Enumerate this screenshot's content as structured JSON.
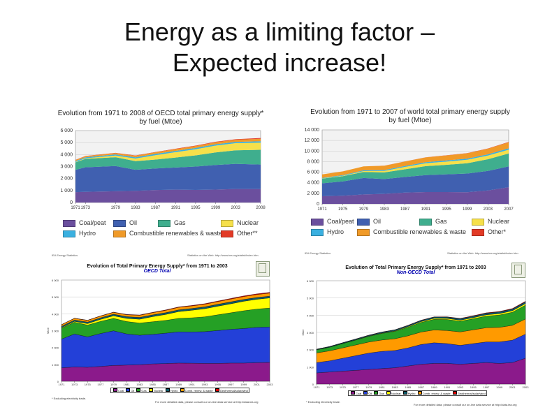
{
  "slide": {
    "title_line1": "Energy as a limiting factor –",
    "title_line2": "Expected increase!"
  },
  "colors": {
    "coal": "#6b4f9e",
    "oil": "#4060b0",
    "gas": "#3fae8e",
    "nuclear": "#f6e04a",
    "hydro": "#3ab0e0",
    "combustible": "#f09a28",
    "other": "#e23a26",
    "s_coal": "#8b1a8b",
    "s_oil": "#2340d8",
    "s_gas": "#25a025",
    "s_nuclear": "#ffff00",
    "s_hydro": "#0c5a6a",
    "s_comb": "#ff9a00",
    "s_geo": "#e00000"
  },
  "chart_data": [
    {
      "type": "area",
      "title": "Evolution from 1971 to 2008 of OECD total primary energy supply*\nby fuel (Mtoe)",
      "x": [
        1971,
        1973,
        1979,
        1983,
        1987,
        1991,
        1995,
        1999,
        2003,
        2008
      ],
      "xticks": [
        "1971",
        "1973",
        "1979",
        "1983",
        "1987",
        "1991",
        "1995",
        "1999",
        "2003",
        "2008"
      ],
      "ylim": [
        0,
        6000
      ],
      "yticks": [
        "0",
        "1 000",
        "2 000",
        "3 000",
        "4 000",
        "5 000",
        "6 000"
      ],
      "series": [
        {
          "name": "Coal/peat",
          "values": [
            870,
            890,
            940,
            980,
            1040,
            1070,
            1050,
            1080,
            1130,
            1120
          ]
        },
        {
          "name": "Oil",
          "values": [
            1850,
            2050,
            2100,
            1750,
            1800,
            1850,
            1950,
            2050,
            2100,
            2050
          ]
        },
        {
          "name": "Gas",
          "values": [
            630,
            700,
            740,
            720,
            740,
            830,
            930,
            1050,
            1120,
            1230
          ]
        },
        {
          "name": "Nuclear",
          "values": [
            30,
            50,
            140,
            220,
            370,
            450,
            510,
            570,
            600,
            600
          ]
        },
        {
          "name": "Hydro",
          "values": [
            80,
            85,
            95,
            105,
            105,
            105,
            110,
            110,
            105,
            110
          ]
        },
        {
          "name": "Combustible renewables & waste",
          "values": [
            90,
            95,
            110,
            130,
            140,
            150,
            160,
            170,
            180,
            210
          ]
        },
        {
          "name": "Other**",
          "values": [
            10,
            10,
            15,
            20,
            25,
            30,
            35,
            40,
            45,
            60
          ]
        }
      ],
      "legend": [
        "Coal/peat",
        "Oil",
        "Gas",
        "Nuclear",
        "Hydro",
        "Combustible renewables & waste",
        "Other**"
      ]
    },
    {
      "type": "area",
      "title": "Evolution from 1971 to 2007 of world total primary energy supply\nby fuel (Mtoe)",
      "x": [
        1971,
        1975,
        1979,
        1983,
        1987,
        1991,
        1995,
        1999,
        2003,
        2007
      ],
      "xticks": [
        "1971",
        "1975",
        "1979",
        "1983",
        "1987",
        "1991",
        "1995",
        "1999",
        "2003",
        "2007"
      ],
      "ylim": [
        0,
        14000
      ],
      "yticks": [
        "0",
        "2 000",
        "4 000",
        "6 000",
        "8 000",
        "10 000",
        "12 000",
        "14 000"
      ],
      "series": [
        {
          "name": "Coal/peat",
          "values": [
            1450,
            1550,
            1800,
            1900,
            2150,
            2250,
            2250,
            2200,
            2550,
            3150
          ]
        },
        {
          "name": "Oil",
          "values": [
            2450,
            2700,
            3100,
            2800,
            2950,
            3200,
            3350,
            3550,
            3700,
            3950
          ]
        },
        {
          "name": "Gas",
          "values": [
            900,
            1000,
            1150,
            1250,
            1450,
            1700,
            1800,
            1950,
            2200,
            2450
          ]
        },
        {
          "name": "Nuclear",
          "values": [
            30,
            80,
            160,
            300,
            450,
            550,
            600,
            650,
            700,
            700
          ]
        },
        {
          "name": "Hydro",
          "values": [
            100,
            120,
            140,
            160,
            180,
            190,
            210,
            220,
            230,
            260
          ]
        },
        {
          "name": "Combustible renewables & waste",
          "values": [
            650,
            700,
            750,
            800,
            850,
            900,
            950,
            1000,
            1050,
            1150
          ]
        },
        {
          "name": "Other*",
          "values": [
            5,
            5,
            10,
            15,
            20,
            30,
            35,
            45,
            55,
            70
          ]
        }
      ],
      "legend": [
        "Coal/peat",
        "Oil",
        "Gas",
        "Nuclear",
        "Hydro",
        "Combustible renewables & waste",
        "Other*"
      ]
    },
    {
      "type": "area",
      "title": "Evolution of Total Primary Energy Supply* from 1971 to 2003",
      "subtitle": "OECD Total",
      "header_left": "IEA Energy Statistics",
      "header_right": "Statistics on the Web: http://www.iea.org/statist/index.htm",
      "ylabel": "Mtoe",
      "x": [
        1971,
        1973,
        1975,
        1977,
        1979,
        1981,
        1983,
        1985,
        1987,
        1989,
        1991,
        1993,
        1995,
        1997,
        1999,
        2001,
        2003
      ],
      "xticks": [
        "1971",
        "1973",
        "1975",
        "1977",
        "1979",
        "1981",
        "1983",
        "1985",
        "1987",
        "1989",
        "1991",
        "1993",
        "1995",
        "1997",
        "1999",
        "2001",
        "2003"
      ],
      "ylim": [
        0,
        6000
      ],
      "yticks": [
        "0",
        "1 000",
        "2 000",
        "3 000",
        "4 000",
        "5 000",
        "6 000"
      ],
      "series": [
        {
          "name": "Coal",
          "values": [
            800,
            850,
            830,
            880,
            940,
            960,
            980,
            1030,
            1050,
            1080,
            1070,
            1060,
            1060,
            1080,
            1080,
            1100,
            1120
          ]
        },
        {
          "name": "Oil",
          "values": [
            1700,
            1950,
            1800,
            1950,
            2050,
            1850,
            1750,
            1750,
            1800,
            1850,
            1850,
            1880,
            1950,
            2000,
            2050,
            2100,
            2100
          ]
        },
        {
          "name": "Gas",
          "values": [
            650,
            700,
            700,
            720,
            740,
            730,
            720,
            750,
            760,
            800,
            840,
            880,
            930,
            980,
            1050,
            1080,
            1120
          ]
        },
        {
          "name": "Nuclear",
          "values": [
            30,
            50,
            90,
            120,
            150,
            190,
            230,
            300,
            350,
            400,
            450,
            480,
            510,
            530,
            560,
            580,
            600
          ]
        },
        {
          "name": "Hydro",
          "values": [
            80,
            85,
            90,
            90,
            95,
            100,
            105,
            105,
            105,
            105,
            105,
            110,
            110,
            115,
            110,
            105,
            105
          ]
        },
        {
          "name": "Comb. renew. & waste",
          "values": [
            90,
            95,
            100,
            105,
            110,
            115,
            125,
            130,
            140,
            145,
            150,
            155,
            160,
            165,
            170,
            175,
            180
          ]
        },
        {
          "name": "Geothermal/solar/wind",
          "values": [
            10,
            10,
            10,
            12,
            15,
            18,
            20,
            22,
            25,
            28,
            30,
            32,
            35,
            38,
            40,
            42,
            45
          ]
        }
      ],
      "legend": [
        "Coal",
        "Oil",
        "Gas",
        "Nuclear",
        "Hydro",
        "Comb. renew. & waste",
        "Geothermal/solar/wind"
      ],
      "footnote": "* Excluding electricity trade.",
      "footer": "For more detailed data, please consult our on-line data service at http://data.iea.org"
    },
    {
      "type": "area",
      "title": "Evolution of Total Primary Energy Supply* from 1971 to 2003",
      "subtitle": "Non-OECD Total",
      "header_left": "IEA Energy Statistics",
      "header_right": "Statistics on the Web: http://www.iea.org/statist/index.htm",
      "ylabel": "Mtoe",
      "x": [
        1971,
        1973,
        1975,
        1977,
        1979,
        1981,
        1983,
        1985,
        1987,
        1989,
        1991,
        1993,
        1995,
        1997,
        1999,
        2001,
        2003
      ],
      "xticks": [
        "1971",
        "1973",
        "1975",
        "1977",
        "1979",
        "1981",
        "1983",
        "1985",
        "1987",
        "1989",
        "1991",
        "1993",
        "1995",
        "1997",
        "1999",
        "2001",
        "2003"
      ],
      "ylim": [
        0,
        6000
      ],
      "yticks": [
        "0",
        "1 000",
        "2 000",
        "3 000",
        "4 000",
        "5 000",
        "6 000"
      ],
      "series": [
        {
          "name": "Coal",
          "values": [
            650,
            700,
            750,
            800,
            850,
            900,
            950,
            1050,
            1150,
            1200,
            1200,
            1150,
            1200,
            1250,
            1200,
            1250,
            1500
          ]
        },
        {
          "name": "Oil",
          "values": [
            600,
            650,
            750,
            850,
            950,
            1000,
            1000,
            1050,
            1150,
            1200,
            1150,
            1100,
            1150,
            1200,
            1250,
            1300,
            1400
          ]
        },
        {
          "name": "Gas",
          "values": [
            180,
            210,
            250,
            290,
            330,
            380,
            430,
            500,
            560,
            620,
            640,
            620,
            640,
            680,
            720,
            760,
            800
          ]
        },
        {
          "name": "Nuclear",
          "values": [
            5,
            5,
            8,
            10,
            15,
            20,
            25,
            35,
            45,
            55,
            60,
            60,
            65,
            70,
            80,
            85,
            90
          ]
        },
        {
          "name": "Hydro",
          "values": [
            30,
            35,
            40,
            45,
            50,
            55,
            60,
            65,
            70,
            75,
            80,
            85,
            90,
            95,
            100,
            105,
            110
          ]
        },
        {
          "name": "Comb. renew. & waste",
          "values": [
            560,
            580,
            600,
            620,
            640,
            660,
            680,
            700,
            720,
            740,
            760,
            780,
            800,
            820,
            840,
            860,
            880
          ]
        },
        {
          "name": "Geothermal/solar/wind",
          "values": [
            2,
            3,
            4,
            5,
            6,
            8,
            10,
            12,
            14,
            16,
            18,
            20,
            22,
            24,
            26,
            28,
            30
          ]
        }
      ],
      "legend": [
        "Coal",
        "Oil",
        "Gas",
        "Nuclear",
        "Hydro",
        "Comb. renew. & waste",
        "Geothermal/solar/wind"
      ],
      "footnote": "* Excluding electricity trade.",
      "footer": "For more detailed data, please consult our on-line data service at http://data.iea.org"
    }
  ]
}
